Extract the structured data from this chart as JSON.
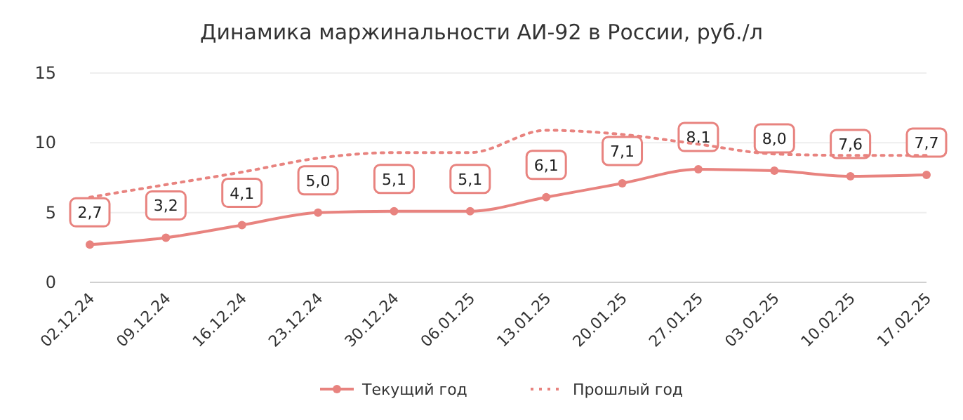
{
  "chart_data": {
    "type": "line",
    "title": "Динамика маржинальности АИ-92 в России, руб./л",
    "categories": [
      "02.12.24",
      "09.12.24",
      "16.12.24",
      "23.12.24",
      "30.12.24",
      "06.01.25",
      "13.01.25",
      "20.01.25",
      "27.01.25",
      "03.02.25",
      "10.02.25",
      "17.02.25"
    ],
    "series": [
      {
        "name": "Текущий год",
        "color": "#e8837f",
        "values": [
          2.7,
          3.2,
          4.1,
          5.0,
          5.1,
          5.1,
          6.1,
          7.1,
          8.1,
          8.0,
          7.6,
          7.7
        ],
        "marker": "circle",
        "line_style": "solid",
        "value_labels": [
          "2,7",
          "3,2",
          "4,1",
          "5,0",
          "5,1",
          "5,1",
          "6,1",
          "7,1",
          "8,1",
          "8,0",
          "7,6",
          "7,7"
        ]
      },
      {
        "name": "Прошлый год",
        "color": "#e8837f",
        "values": [
          6.1,
          7.0,
          7.9,
          8.9,
          9.3,
          9.3,
          10.9,
          10.6,
          9.9,
          9.2,
          9.1,
          9.1
        ],
        "marker": "none",
        "line_style": "dotted"
      }
    ],
    "ylim": [
      0,
      15
    ],
    "yticks": [
      0,
      5,
      10,
      15
    ],
    "grid": "y",
    "legend": "bottom"
  }
}
